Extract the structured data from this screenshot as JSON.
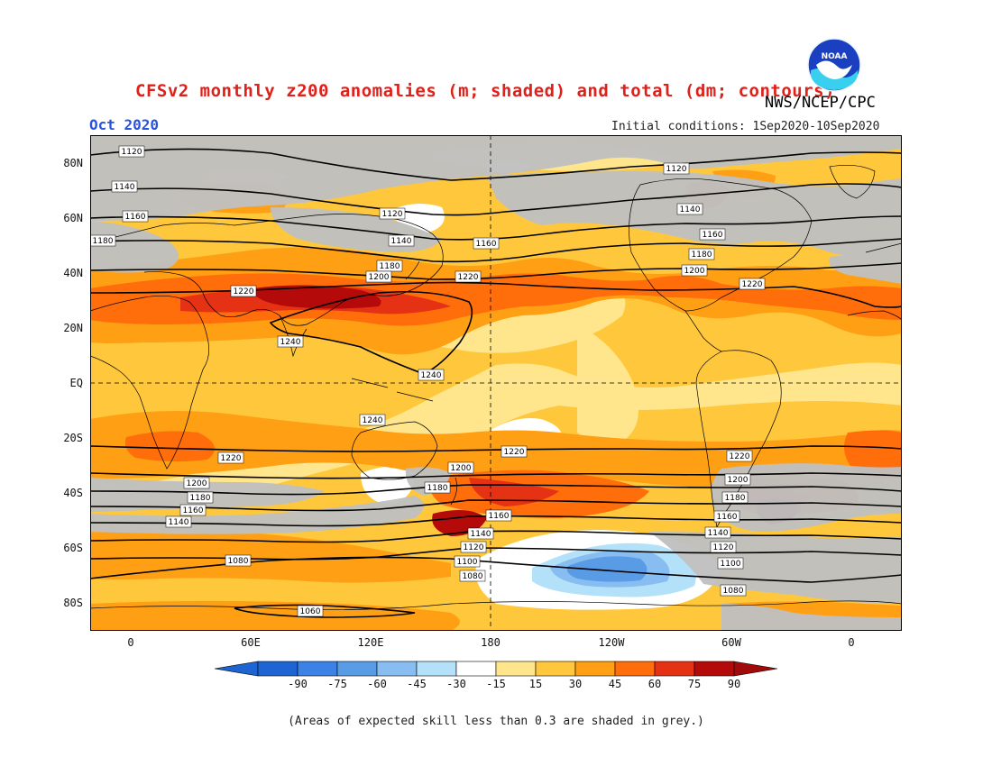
{
  "header": {
    "title": "CFSv2 monthly z200 anomalies (m; shaded) and total (dm; contours)",
    "agency": "NWS/NCEP/CPC",
    "month": "Oct 2020",
    "initial_conditions": "Initial conditions: 1Sep2020-10Sep2020"
  },
  "logo": {
    "text": "NOAA",
    "icon": "noaa-logo"
  },
  "axes": {
    "lat_labels": [
      "80N",
      "60N",
      "40N",
      "20N",
      "EQ",
      "20S",
      "40S",
      "60S",
      "80S"
    ],
    "lon_labels": [
      "0",
      "60E",
      "120E",
      "180",
      "120W",
      "60W",
      "0"
    ]
  },
  "contour_labels": [
    "1120",
    "1140",
    "1160",
    "1180",
    "1120",
    "1140",
    "1160",
    "1180",
    "1200",
    "1220",
    "1120",
    "1140",
    "1160",
    "1180",
    "1200",
    "1220",
    "1220",
    "1240",
    "1240",
    "1240",
    "1220",
    "1220",
    "1220",
    "1200",
    "1180",
    "1160",
    "1140",
    "1200",
    "1180",
    "1160",
    "1140",
    "1120",
    "1100",
    "1080",
    "1200",
    "1180",
    "1160",
    "1140",
    "1120",
    "1100",
    "1080",
    "1080",
    "1060"
  ],
  "colorbar": {
    "levels": [
      "-90",
      "-75",
      "-60",
      "-45",
      "-30",
      "-15",
      "15",
      "30",
      "45",
      "60",
      "75",
      "90"
    ],
    "colors": [
      "#1e64d2",
      "#3c82e6",
      "#5a9be6",
      "#87bdf0",
      "#b4e1fa",
      "#ffffff",
      "#ffe68c",
      "#ffc83c",
      "#ffa014",
      "#ff6e0a",
      "#e63214",
      "#b40a0a"
    ],
    "under_color": "#1e64d2",
    "over_color": "#a00a0a"
  },
  "skill_mask_color": "#c0c0c0",
  "note": "(Areas of expected skill less than 0.3 are shaded in grey.)"
}
